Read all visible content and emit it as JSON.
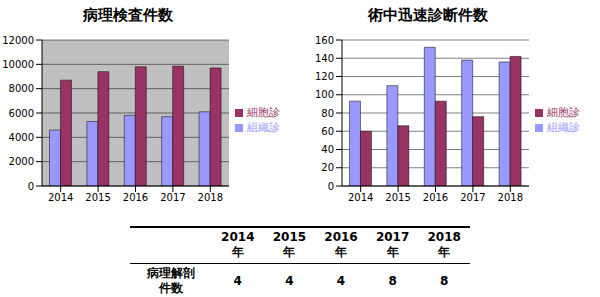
{
  "chart_data": [
    {
      "type": "bar",
      "title": "病理検査件数",
      "categories": [
        "2014",
        "2015",
        "2016",
        "2017",
        "2018"
      ],
      "series": [
        {
          "name": "組織診",
          "color": "#9999ff",
          "values": [
            4600,
            5300,
            5800,
            5700,
            6100
          ]
        },
        {
          "name": "細胞診",
          "color": "#993366",
          "values": [
            8700,
            9400,
            9800,
            9850,
            9700
          ]
        }
      ],
      "ylim": [
        0,
        12000
      ],
      "yticks": [
        0,
        2000,
        4000,
        6000,
        8000,
        10000,
        12000
      ],
      "grid": true,
      "legend": "right"
    },
    {
      "type": "bar",
      "title": "術中迅速診断件数",
      "categories": [
        "2014",
        "2015",
        "2016",
        "2017",
        "2018"
      ],
      "series": [
        {
          "name": "組織診",
          "color": "#9999ff",
          "values": [
            93,
            110,
            152,
            138,
            136
          ]
        },
        {
          "name": "細胞診",
          "color": "#993366",
          "values": [
            60,
            66,
            93,
            76,
            142
          ]
        }
      ],
      "ylim": [
        0,
        160
      ],
      "yticks": [
        0,
        20,
        40,
        60,
        80,
        100,
        120,
        140,
        160
      ],
      "grid": true,
      "legend": "right"
    }
  ],
  "table": {
    "header": [
      "2014年",
      "2015年",
      "2016年",
      "2017年",
      "2018年"
    ],
    "row_label": [
      "病理解剖",
      "件数"
    ],
    "values": [
      4,
      4,
      4,
      8,
      8
    ]
  }
}
